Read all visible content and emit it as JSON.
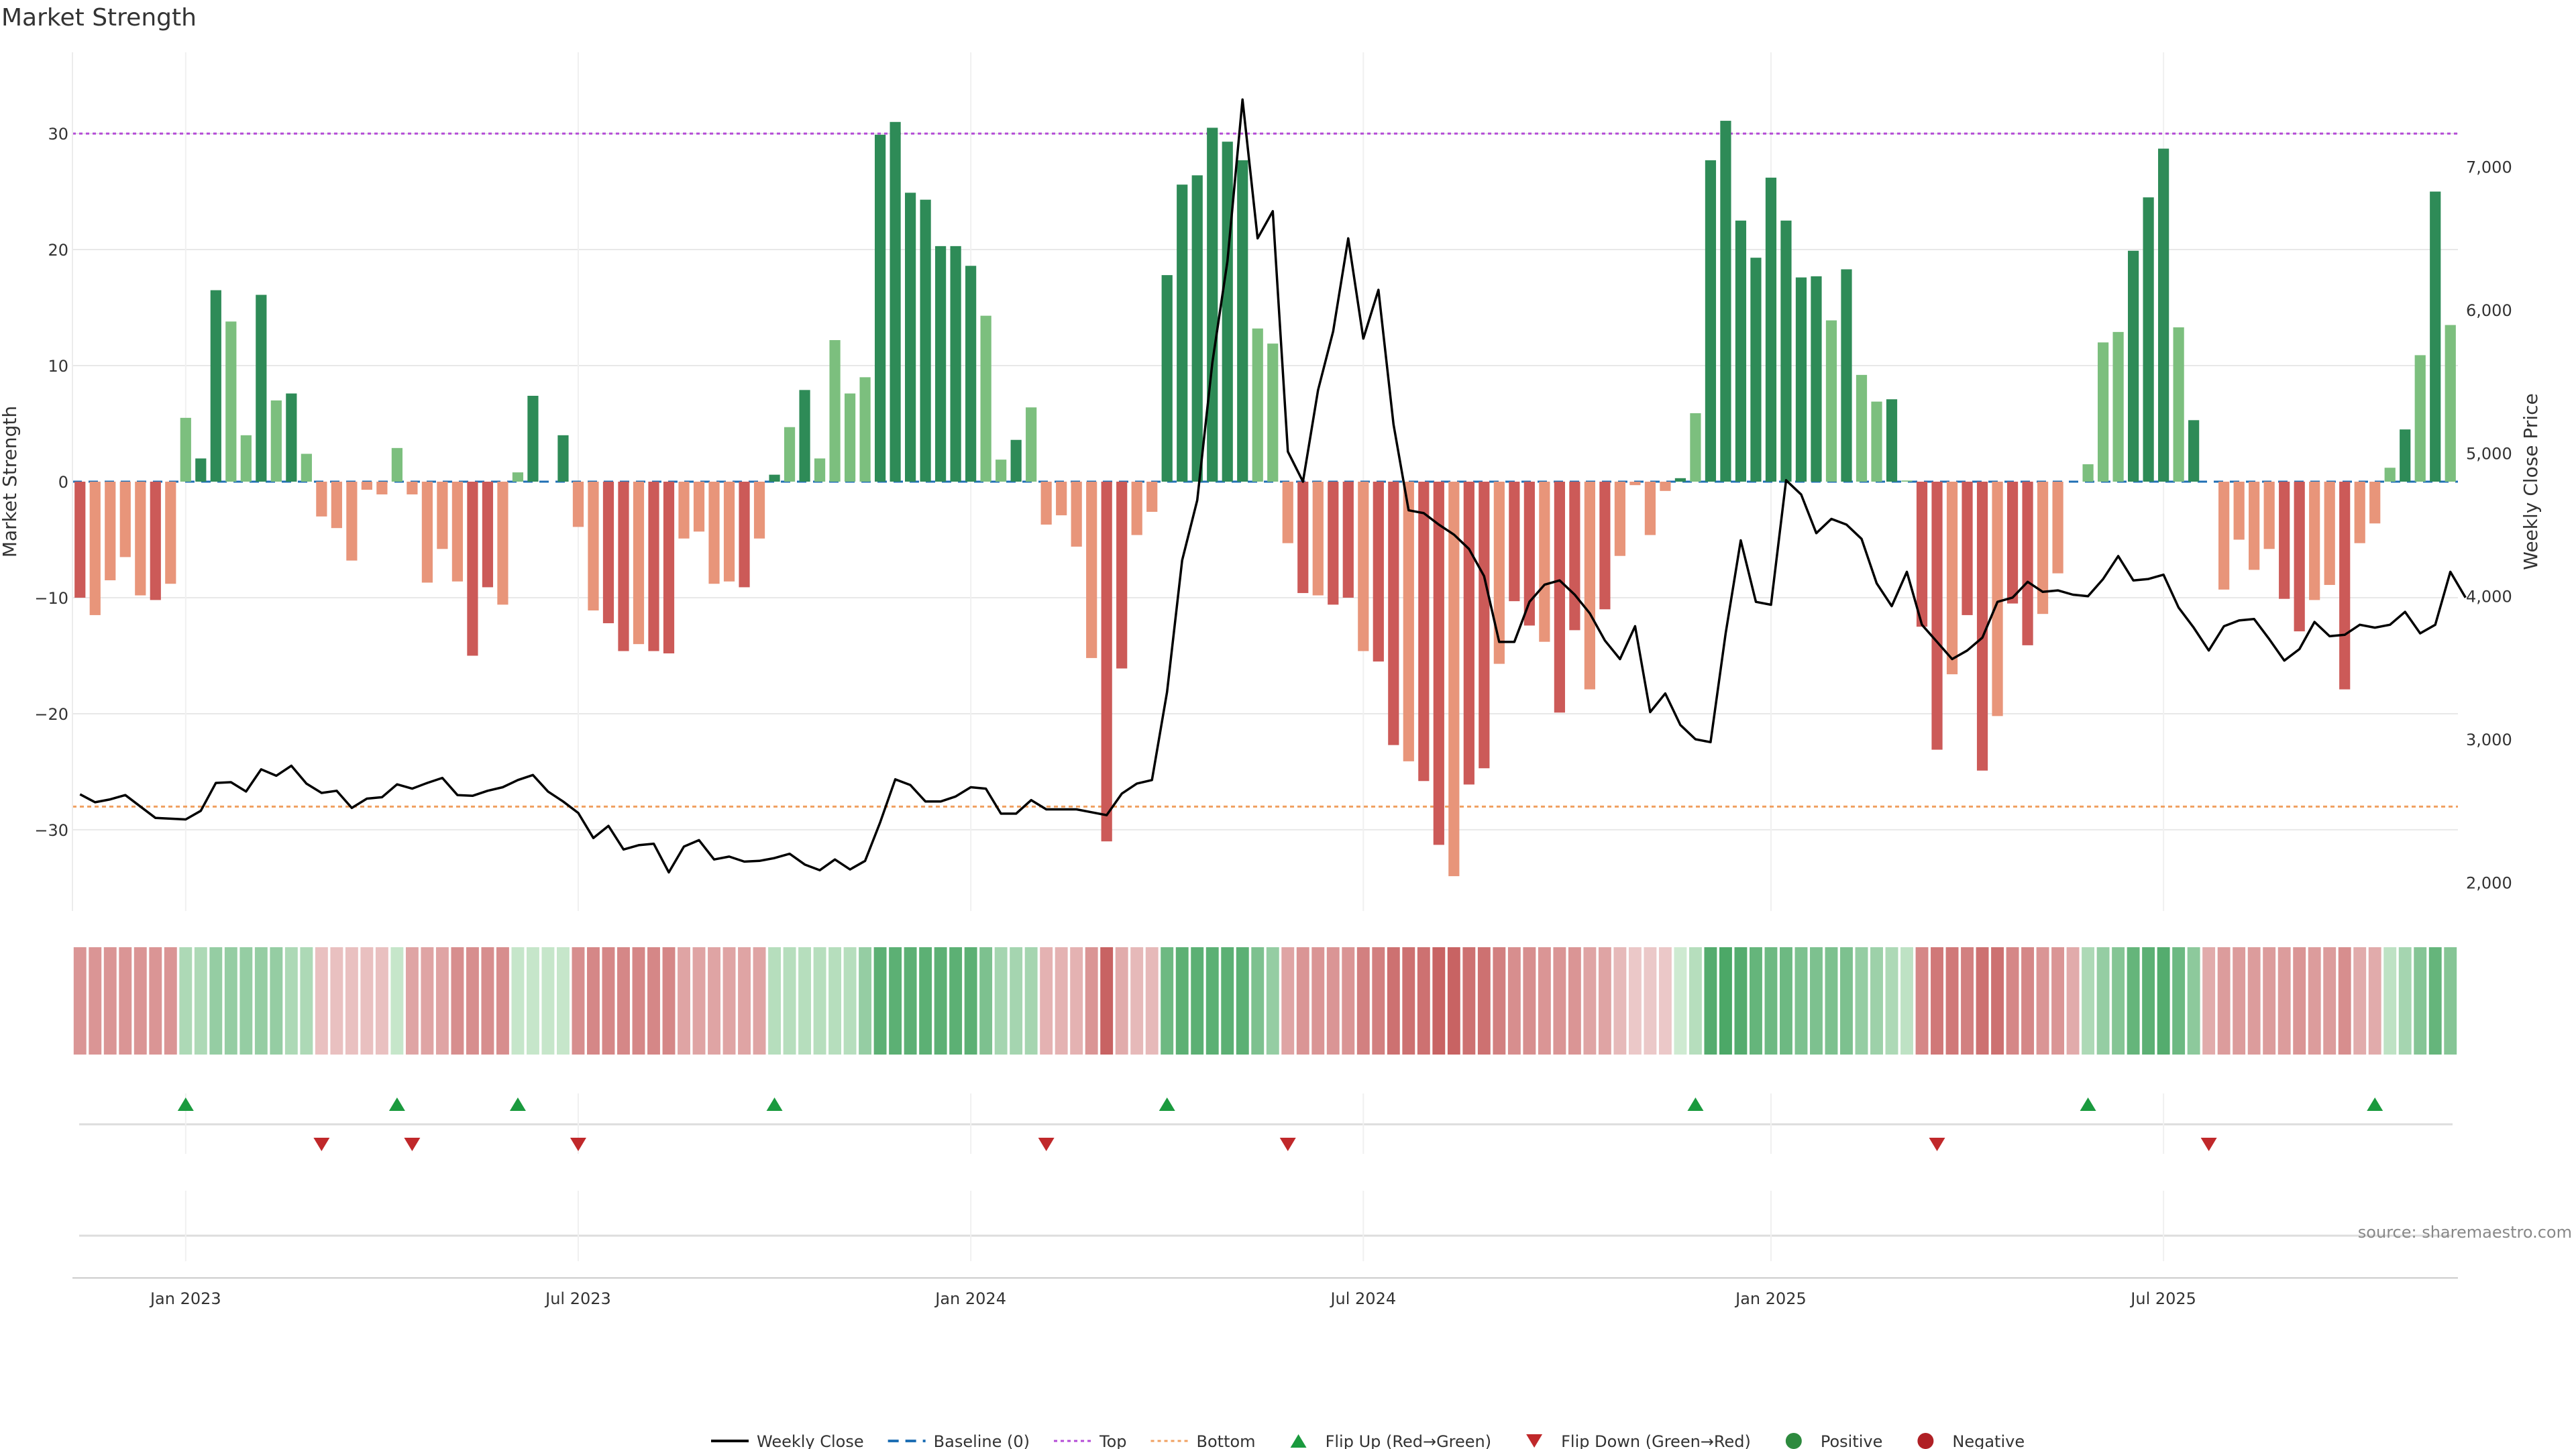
{
  "chart_data": {
    "type": "bar+line",
    "title": "Market Strength",
    "ylabel_left": "Market Strength",
    "ylabel_right": "Weekly Close Price",
    "source": "source: sharemaestro.com",
    "ylim_left": [
      -37,
      37
    ],
    "ylim_right": [
      1800,
      7800
    ],
    "yticks_left": [
      -30,
      -20,
      -10,
      0,
      10,
      20,
      30
    ],
    "yticks_left_labels": [
      "−30",
      "−20",
      "−10",
      "0",
      "10",
      "20",
      "30"
    ],
    "yticks_right": [
      2000,
      3000,
      4000,
      5000,
      6000,
      7000
    ],
    "yticks_right_labels": [
      "2,000",
      "3,000",
      "4,000",
      "5,000",
      "6,000",
      "7,000"
    ],
    "x_start_index": -7,
    "x_ticks": [
      {
        "label": "Jan 2023",
        "index": 0
      },
      {
        "label": "Jul 2023",
        "index": 26
      },
      {
        "label": "Jan 2024",
        "index": 52
      },
      {
        "label": "Jul 2024",
        "index": 78
      },
      {
        "label": "Jan 2025",
        "index": 105
      },
      {
        "label": "Jul 2025",
        "index": 131
      }
    ],
    "top_line": 30,
    "bottom_line": -28,
    "baseline": 0,
    "strength": [
      -10,
      -11.5,
      -8.5,
      -6.5,
      -9.8,
      -10.2,
      -8.8,
      5.5,
      2,
      16.5,
      13.8,
      4,
      16.1,
      7,
      7.6,
      2.4,
      -3,
      -4,
      -6.8,
      -0.7,
      -1.1,
      2.9,
      -1.1,
      -8.7,
      -5.8,
      -8.6,
      -15,
      -9.1,
      -10.6,
      0.8,
      7.4,
      0,
      4,
      -3.9,
      -11.1,
      -12.2,
      -14.6,
      -14,
      -14.6,
      -14.8,
      -4.9,
      -4.3,
      -8.8,
      -8.6,
      -9.1,
      -4.9,
      0.6,
      4.7,
      7.9,
      2,
      12.2,
      7.6,
      9,
      29.9,
      31,
      24.9,
      24.3,
      20.3,
      20.3,
      18.6,
      14.3,
      1.9,
      3.6,
      6.4,
      -3.7,
      -2.9,
      -5.6,
      -15.2,
      -31,
      -16.1,
      -4.6,
      -2.6,
      17.8,
      25.6,
      26.4,
      30.5,
      29.3,
      27.7,
      13.2,
      11.9,
      -5.3,
      -9.6,
      -9.8,
      -10.6,
      -10,
      -14.6,
      -15.5,
      -22.7,
      -24.1,
      -25.8,
      -31.3,
      -34,
      -26.1,
      -24.7,
      -15.7,
      -10.3,
      -12.4,
      -13.8,
      -19.9,
      -12.8,
      -17.9,
      -11,
      -6.4,
      -0.3,
      -4.6,
      -0.8,
      0.3,
      5.9,
      27.7,
      31.1,
      22.5,
      19.3,
      26.2,
      22.5,
      17.6,
      17.7,
      13.9,
      18.3,
      9.2,
      6.9,
      7.1,
      0.1,
      -12.5,
      -23.1,
      -16.6,
      -11.5,
      -24.9,
      -20.2,
      -10.5,
      -14.1,
      -11.4,
      -7.9,
      0,
      1.5,
      12,
      12.9,
      19.9,
      24.5,
      28.7,
      13.3,
      5.3,
      0,
      -9.3,
      -5,
      -7.6,
      -5.8,
      -10.1,
      -12.9,
      -10.2,
      -8.9,
      -17.9,
      -5.3,
      -3.6,
      1.2,
      4.5,
      10.9,
      25,
      13.5
    ],
    "close": [
      2615,
      2560,
      2580,
      2610,
      2530,
      2450,
      2445,
      2440,
      2500,
      2695,
      2700,
      2635,
      2790,
      2745,
      2815,
      2690,
      2625,
      2640,
      2520,
      2585,
      2595,
      2685,
      2655,
      2695,
      2730,
      2610,
      2605,
      2640,
      2665,
      2715,
      2750,
      2635,
      2565,
      2485,
      2310,
      2395,
      2230,
      2260,
      2270,
      2070,
      2250,
      2295,
      2160,
      2180,
      2145,
      2150,
      2170,
      2200,
      2125,
      2085,
      2160,
      2090,
      2150,
      2420,
      2720,
      2680,
      2565,
      2565,
      2600,
      2665,
      2655,
      2480,
      2480,
      2575,
      2510,
      2510,
      2510,
      2490,
      2470,
      2620,
      2690,
      2715,
      3330,
      4250,
      4670,
      5630,
      6340,
      7470,
      6500,
      6690,
      5010,
      4800,
      5440,
      5850,
      6500,
      5800,
      6140,
      5200,
      4600,
      4580,
      4500,
      4430,
      4330,
      4140,
      3680,
      3680,
      3960,
      4080,
      4110,
      4010,
      3880,
      3690,
      3560,
      3790,
      3190,
      3320,
      3100,
      3000,
      2980,
      3740,
      4390,
      3960,
      3940,
      4810,
      4710,
      4440,
      4540,
      4500,
      4400,
      4090,
      3930,
      4170,
      3800,
      3680,
      3560,
      3620,
      3710,
      3960,
      3990,
      4100,
      4030,
      4040,
      4010,
      4000,
      4120,
      4280,
      4110,
      4120,
      4150,
      3920,
      3780,
      3620,
      3790,
      3830,
      3840,
      3700,
      3550,
      3630,
      3820,
      3720,
      3730,
      3800,
      3780,
      3800,
      3890,
      3740,
      3800,
      4170,
      3990
    ],
    "color_strip": [
      -0.45,
      -0.45,
      -0.45,
      -0.45,
      -0.45,
      -0.45,
      -0.45,
      0.3,
      0.3,
      0.45,
      0.45,
      0.45,
      0.45,
      0.45,
      0.3,
      0.3,
      -0.15,
      -0.15,
      -0.15,
      -0.15,
      -0.15,
      0.15,
      -0.35,
      -0.35,
      -0.35,
      -0.5,
      -0.5,
      -0.5,
      -0.5,
      0.15,
      0.15,
      0.15,
      0.15,
      -0.5,
      -0.55,
      -0.55,
      -0.55,
      -0.55,
      -0.55,
      -0.55,
      -0.35,
      -0.35,
      -0.35,
      -0.35,
      -0.35,
      -0.35,
      0.25,
      0.25,
      0.25,
      0.25,
      0.25,
      0.25,
      0.45,
      0.8,
      0.8,
      0.8,
      0.8,
      0.8,
      0.8,
      0.8,
      0.6,
      0.35,
      0.35,
      0.35,
      -0.25,
      -0.25,
      -0.25,
      -0.45,
      -0.8,
      -0.3,
      -0.2,
      -0.2,
      0.7,
      0.8,
      0.8,
      0.8,
      0.8,
      0.8,
      0.6,
      0.45,
      -0.35,
      -0.45,
      -0.45,
      -0.45,
      -0.45,
      -0.6,
      -0.6,
      -0.7,
      -0.7,
      -0.7,
      -0.8,
      -0.8,
      -0.7,
      -0.7,
      -0.6,
      -0.5,
      -0.5,
      -0.45,
      -0.45,
      -0.45,
      -0.35,
      -0.35,
      -0.2,
      -0.1,
      -0.1,
      -0.1,
      0.1,
      0.25,
      0.85,
      0.9,
      0.85,
      0.75,
      0.7,
      0.7,
      0.6,
      0.6,
      0.6,
      0.6,
      0.45,
      0.4,
      0.3,
      0.2,
      -0.55,
      -0.65,
      -0.65,
      -0.6,
      -0.7,
      -0.7,
      -0.55,
      -0.55,
      -0.45,
      -0.45,
      -0.3,
      0.3,
      0.45,
      0.55,
      0.75,
      0.8,
      0.85,
      0.7,
      0.5,
      -0.3,
      -0.4,
      -0.4,
      -0.4,
      -0.4,
      -0.4,
      -0.45,
      -0.4,
      -0.4,
      -0.5,
      -0.3,
      -0.3,
      0.2,
      0.35,
      0.55,
      0.75,
      0.55
    ],
    "flip_up_indices": [
      0,
      14,
      22,
      39,
      65,
      100,
      126,
      145
    ],
    "flip_down_indices": [
      9,
      15,
      26,
      57,
      73,
      116,
      134
    ],
    "legend": [
      {
        "label": "Weekly Close",
        "kind": "line",
        "color": "#000000"
      },
      {
        "label": "Baseline (0)",
        "kind": "dash",
        "color": "#1f6fb4"
      },
      {
        "label": "Top",
        "kind": "dot",
        "color": "#b44bd6"
      },
      {
        "label": "Bottom",
        "kind": "dot",
        "color": "#f0a060"
      },
      {
        "label": "Flip Up (Red→Green)",
        "kind": "tri-up",
        "color": "#1a9a3e"
      },
      {
        "label": "Flip Down (Green→Red)",
        "kind": "tri-down",
        "color": "#c0282a"
      },
      {
        "label": "Positive",
        "kind": "circle",
        "color": "#2d8a3e"
      },
      {
        "label": "Negative",
        "kind": "circle",
        "color": "#b02025"
      }
    ],
    "colors": {
      "pos_strong": "#2e8b57",
      "pos_light": "#7cbf7e",
      "neg_strong": "#cc5a58",
      "neg_light": "#e8957a",
      "top_line": "#b44bd6",
      "bottom_line": "#f0a060",
      "baseline": "#1f6fb4",
      "close_line": "#000000",
      "grid": "#e8e8e8"
    }
  }
}
